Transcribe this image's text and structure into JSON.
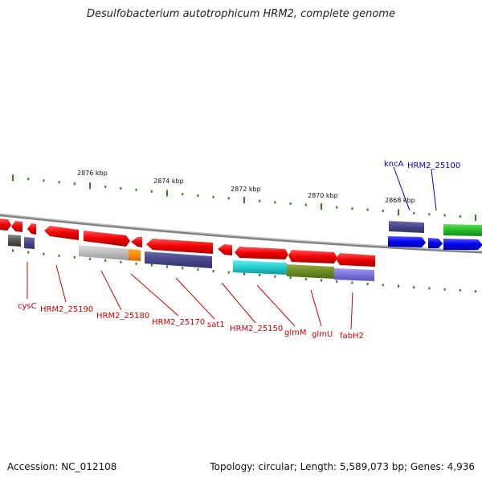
{
  "title": "Desulfobacterium autotrophicum HRM2, complete genome",
  "footer": {
    "accession": "Accession: NC_012108",
    "topology": "Topology: circular; Length: 5,589,073 bp; Genes: 4,936"
  },
  "scale_labels": [
    "2876 kbp",
    "2874 kbp",
    "2872 kbp",
    "2870 kbp",
    "2868 kbp"
  ],
  "colors": {
    "tick": "#2e7d16",
    "backbone": "#808080",
    "label_red": "#cc0000",
    "label_blue": "#0000cc"
  },
  "gene_labels": [
    {
      "text": "cysC",
      "color": "#cc0000"
    },
    {
      "text": "HRM2_25190",
      "color": "#cc0000"
    },
    {
      "text": "HRM2_25180",
      "color": "#cc0000"
    },
    {
      "text": "HRM2_25170",
      "color": "#cc0000"
    },
    {
      "text": "sat1",
      "color": "#cc0000"
    },
    {
      "text": "HRM2_25150",
      "color": "#cc0000"
    },
    {
      "text": "glmM",
      "color": "#cc0000"
    },
    {
      "text": "glmU",
      "color": "#cc0000"
    },
    {
      "text": "fabH2",
      "color": "#cc0000"
    },
    {
      "text": "kncA",
      "color": "#0000cc"
    },
    {
      "text": "HRM2_25100",
      "color": "#0000cc"
    }
  ]
}
